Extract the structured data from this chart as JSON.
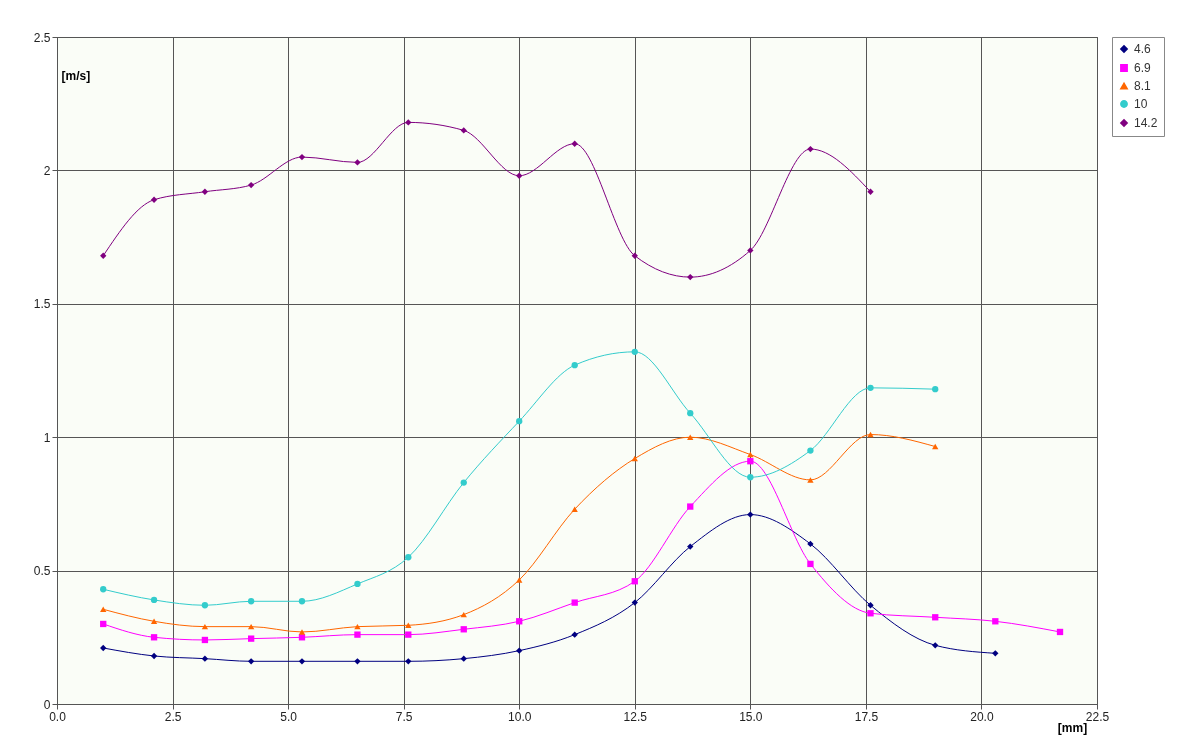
{
  "chart_data": {
    "type": "line",
    "xlabel": "[mm]",
    "ylabel": "[m/s]",
    "xlim": [
      0,
      22.5
    ],
    "xticks": [
      {
        "value": 0,
        "label": "0.0"
      },
      {
        "value": 2.5,
        "label": "2.5"
      },
      {
        "value": 5,
        "label": "5.0"
      },
      {
        "value": 7.5,
        "label": "7.5"
      },
      {
        "value": 10,
        "label": "10.0"
      },
      {
        "value": 12.5,
        "label": "12.5"
      },
      {
        "value": 15,
        "label": "15.0"
      },
      {
        "value": 17.5,
        "label": "17.5"
      },
      {
        "value": 20,
        "label": "20.0"
      },
      {
        "value": 22.5,
        "label": "22.5"
      }
    ],
    "ylim": [
      0,
      2.5
    ],
    "yticks": [
      0,
      0.5,
      1,
      1.5,
      2,
      2.5
    ],
    "grid": true,
    "legend": "right",
    "series": [
      {
        "name": "4.6",
        "color": "#000080",
        "marker": "diamond",
        "x": [
          1.0,
          2.1,
          3.2,
          4.2,
          5.3,
          6.5,
          7.6,
          8.8,
          10.0,
          11.2,
          12.5,
          13.7,
          15.0,
          16.3,
          17.6,
          19.0,
          20.3
        ],
        "values": [
          0.21,
          0.18,
          0.17,
          0.16,
          0.16,
          0.16,
          0.16,
          0.17,
          0.2,
          0.26,
          0.38,
          0.59,
          0.71,
          0.6,
          0.37,
          0.22,
          0.19
        ]
      },
      {
        "name": "6.9",
        "color": "#ff00ff",
        "marker": "square",
        "x": [
          1.0,
          2.1,
          3.2,
          4.2,
          5.3,
          6.5,
          7.6,
          8.8,
          10.0,
          11.2,
          12.5,
          13.7,
          15.0,
          16.3,
          17.6,
          19.0,
          20.3,
          21.7
        ],
        "values": [
          0.3,
          0.25,
          0.24,
          0.245,
          0.25,
          0.26,
          0.26,
          0.28,
          0.31,
          0.38,
          0.46,
          0.74,
          0.91,
          0.525,
          0.34,
          0.325,
          0.31,
          0.27
        ]
      },
      {
        "name": "8.1",
        "color": "#ff6600",
        "marker": "triangle",
        "x": [
          1.0,
          2.1,
          3.2,
          4.2,
          5.3,
          6.5,
          7.6,
          8.8,
          10.0,
          11.2,
          12.5,
          13.7,
          15.0,
          16.3,
          17.6,
          19.0
        ],
        "values": [
          0.355,
          0.31,
          0.29,
          0.29,
          0.27,
          0.29,
          0.295,
          0.335,
          0.465,
          0.73,
          0.92,
          1.0,
          0.935,
          0.84,
          1.01,
          0.965
        ]
      },
      {
        "name": "10",
        "color": "#33cccc",
        "marker": "circle",
        "x": [
          1.0,
          2.1,
          3.2,
          4.2,
          5.3,
          6.5,
          7.6,
          8.8,
          10.0,
          11.2,
          12.5,
          13.7,
          15.0,
          16.3,
          17.6,
          19.0
        ],
        "values": [
          0.43,
          0.39,
          0.37,
          0.385,
          0.385,
          0.45,
          0.55,
          0.83,
          1.06,
          1.27,
          1.32,
          1.09,
          0.85,
          0.95,
          1.185,
          1.18
        ]
      },
      {
        "name": "14.2",
        "color": "#800080",
        "marker": "diamond",
        "x": [
          1.0,
          2.1,
          3.2,
          4.2,
          5.3,
          6.5,
          7.6,
          8.8,
          10.0,
          11.2,
          12.5,
          13.7,
          15.0,
          16.3,
          17.6
        ],
        "values": [
          1.68,
          1.89,
          1.92,
          1.945,
          2.05,
          2.03,
          2.18,
          2.15,
          1.98,
          2.1,
          1.68,
          1.6,
          1.7,
          2.08,
          1.92
        ]
      }
    ]
  }
}
